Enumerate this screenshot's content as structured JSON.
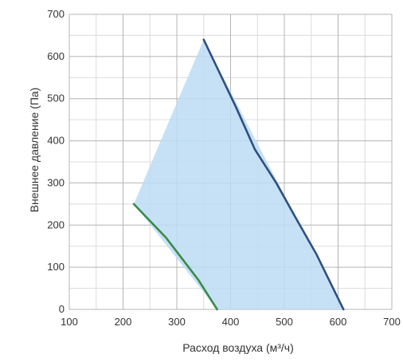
{
  "chart_data": {
    "type": "area",
    "xlabel": "Расход воздуха (м³/ч)",
    "ylabel": "Внешнее давление (Па)",
    "xlim": [
      100,
      700
    ],
    "ylim": [
      0,
      700
    ],
    "x_ticks": [
      100,
      200,
      300,
      400,
      500,
      600,
      700
    ],
    "y_ticks": [
      0,
      100,
      200,
      300,
      400,
      500,
      600,
      700
    ],
    "x_minor_step": 50,
    "y_minor_step": 50,
    "grid": true,
    "series": [
      {
        "color": "#2f4f7f",
        "points": [
          [
            350,
            640
          ],
          [
            380,
            560
          ],
          [
            410,
            480
          ],
          [
            445,
            380
          ],
          [
            485,
            300
          ],
          [
            520,
            220
          ],
          [
            560,
            130
          ],
          [
            610,
            0
          ]
        ]
      },
      {
        "color": "#3a8a4a",
        "points": [
          [
            220,
            250
          ],
          [
            250,
            210
          ],
          [
            280,
            170
          ],
          [
            310,
            120
          ],
          [
            340,
            70
          ],
          [
            375,
            0
          ]
        ]
      }
    ],
    "fill_color": "#bcdcf3",
    "fill_polygon": [
      [
        220,
        250
      ],
      [
        350,
        640
      ],
      [
        610,
        0
      ],
      [
        375,
        0
      ]
    ]
  }
}
